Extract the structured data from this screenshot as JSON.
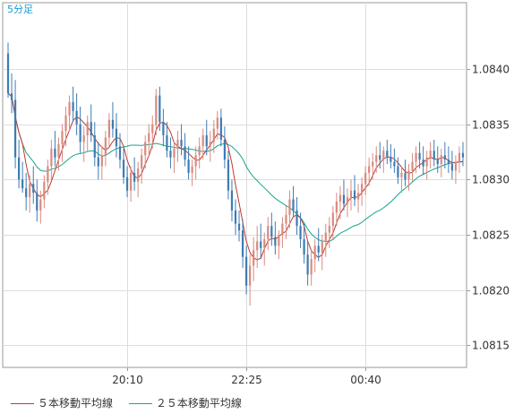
{
  "timeframe_label": "5分足",
  "legend": {
    "ma5": "５本移動平均線",
    "ma25": "２５本移動平均線"
  },
  "colors": {
    "bull": "#d98b80",
    "bear": "#3e7cb3",
    "ma5": "#c0392b",
    "ma25": "#1aa38c",
    "grid": "#dddddd",
    "frame": "#999999"
  },
  "chart_data": {
    "type": "candlestick",
    "instrument_timeframe": "5分足",
    "ylim": [
      1.0813,
      1.0846
    ],
    "ytick_labels": [
      "1.0840",
      "1.0835",
      "1.0830",
      "1.0825",
      "1.0820",
      "1.0815"
    ],
    "ytick_values": [
      1.084,
      1.0835,
      1.083,
      1.0825,
      1.082,
      1.0815
    ],
    "xtick_labels": [
      "20:10",
      "22:25",
      "00:40"
    ],
    "xtick_bar_index": [
      33,
      66,
      99
    ],
    "bar_count": 127,
    "series": [
      {
        "name": "５本移動平均線",
        "color": "#c0392b"
      },
      {
        "name": "２５本移動平均線",
        "color": "#1aa38c"
      }
    ],
    "candles": [
      [
        1.08414,
        1.08424,
        1.08374,
        1.08378
      ],
      [
        1.08378,
        1.08396,
        1.0836,
        1.08372
      ],
      [
        1.08372,
        1.0839,
        1.0831,
        1.0832
      ],
      [
        1.0832,
        1.08336,
        1.08292,
        1.083
      ],
      [
        1.083,
        1.08316,
        1.08288,
        1.08292
      ],
      [
        1.08292,
        1.08306,
        1.08272,
        1.08284
      ],
      [
        1.08284,
        1.08304,
        1.0827,
        1.08296
      ],
      [
        1.08296,
        1.08312,
        1.08278,
        1.08288
      ],
      [
        1.08288,
        1.083,
        1.08262,
        1.08272
      ],
      [
        1.08272,
        1.0829,
        1.0826,
        1.08282
      ],
      [
        1.08282,
        1.08304,
        1.08274,
        1.08298
      ],
      [
        1.08298,
        1.08318,
        1.08286,
        1.08312
      ],
      [
        1.08312,
        1.08336,
        1.083,
        1.08328
      ],
      [
        1.08328,
        1.08344,
        1.08312,
        1.0832
      ],
      [
        1.0832,
        1.08338,
        1.08308,
        1.08332
      ],
      [
        1.08332,
        1.0835,
        1.08316,
        1.08344
      ],
      [
        1.08344,
        1.08366,
        1.0833,
        1.08358
      ],
      [
        1.08358,
        1.08376,
        1.08344,
        1.0837
      ],
      [
        1.0837,
        1.08384,
        1.08352,
        1.08362
      ],
      [
        1.08362,
        1.08378,
        1.0834,
        1.0835
      ],
      [
        1.0835,
        1.08366,
        1.08324,
        1.08334
      ],
      [
        1.08334,
        1.08348,
        1.08316,
        1.0834
      ],
      [
        1.0834,
        1.08358,
        1.08326,
        1.08352
      ],
      [
        1.08352,
        1.08368,
        1.08334,
        1.0834
      ],
      [
        1.0834,
        1.08352,
        1.08312,
        1.0832
      ],
      [
        1.0832,
        1.08334,
        1.083,
        1.08312
      ],
      [
        1.08312,
        1.0833,
        1.083,
        1.08322
      ],
      [
        1.08322,
        1.08344,
        1.08312,
        1.08338
      ],
      [
        1.08338,
        1.0836,
        1.0833,
        1.08354
      ],
      [
        1.08354,
        1.0837,
        1.08338,
        1.08346
      ],
      [
        1.08346,
        1.0836,
        1.0832,
        1.0833
      ],
      [
        1.0833,
        1.08342,
        1.0831,
        1.08318
      ],
      [
        1.08318,
        1.08328,
        1.08296,
        1.08302
      ],
      [
        1.08302,
        1.08312,
        1.08284,
        1.0829
      ],
      [
        1.0829,
        1.08312,
        1.0828,
        1.08306
      ],
      [
        1.08306,
        1.0832,
        1.0829,
        1.08298
      ],
      [
        1.08298,
        1.08316,
        1.08284,
        1.0831
      ],
      [
        1.0831,
        1.08328,
        1.08296,
        1.08322
      ],
      [
        1.08322,
        1.0834,
        1.0831,
        1.08334
      ],
      [
        1.08334,
        1.0835,
        1.0832,
        1.08342
      ],
      [
        1.08342,
        1.08358,
        1.08328,
        1.0835
      ],
      [
        1.0835,
        1.08382,
        1.0834,
        1.08376
      ],
      [
        1.08376,
        1.08384,
        1.08344,
        1.08352
      ],
      [
        1.08352,
        1.08364,
        1.0833,
        1.0834
      ],
      [
        1.0834,
        1.08352,
        1.0832,
        1.08326
      ],
      [
        1.08326,
        1.08338,
        1.0831,
        1.0832
      ],
      [
        1.0832,
        1.08334,
        1.08306,
        1.08328
      ],
      [
        1.08328,
        1.08344,
        1.08316,
        1.08336
      ],
      [
        1.08336,
        1.0835,
        1.08322,
        1.0833
      ],
      [
        1.0833,
        1.08342,
        1.08312,
        1.08318
      ],
      [
        1.08318,
        1.0833,
        1.083,
        1.08306
      ],
      [
        1.08306,
        1.08318,
        1.08294,
        1.08312
      ],
      [
        1.08312,
        1.0833,
        1.083,
        1.08322
      ],
      [
        1.08322,
        1.08338,
        1.0831,
        1.0833
      ],
      [
        1.0833,
        1.08346,
        1.08318,
        1.0834
      ],
      [
        1.0834,
        1.08354,
        1.08322,
        1.0833
      ],
      [
        1.0833,
        1.08344,
        1.08316,
        1.08334
      ],
      [
        1.08334,
        1.08354,
        1.08324,
        1.08346
      ],
      [
        1.08346,
        1.08362,
        1.08336,
        1.08356
      ],
      [
        1.08356,
        1.08364,
        1.0833,
        1.08336
      ],
      [
        1.08336,
        1.08348,
        1.0831,
        1.08318
      ],
      [
        1.08318,
        1.08326,
        1.08282,
        1.0829
      ],
      [
        1.0829,
        1.083,
        1.08262,
        1.08272
      ],
      [
        1.08272,
        1.08282,
        1.0825,
        1.0826
      ],
      [
        1.0826,
        1.08272,
        1.08244,
        1.08254
      ],
      [
        1.08254,
        1.08264,
        1.0822,
        1.0823
      ],
      [
        1.0823,
        1.0824,
        1.08196,
        1.08204
      ],
      [
        1.08204,
        1.08232,
        1.08186,
        1.08222
      ],
      [
        1.08222,
        1.08248,
        1.08208,
        1.08236
      ],
      [
        1.08236,
        1.08258,
        1.0822,
        1.08244
      ],
      [
        1.08244,
        1.0826,
        1.08228,
        1.08238
      ],
      [
        1.08238,
        1.08252,
        1.08222,
        1.08246
      ],
      [
        1.08246,
        1.08266,
        1.08236,
        1.08258
      ],
      [
        1.08258,
        1.0827,
        1.0824,
        1.08248
      ],
      [
        1.08248,
        1.08262,
        1.08232,
        1.0824
      ],
      [
        1.0824,
        1.08254,
        1.08228,
        1.0825
      ],
      [
        1.0825,
        1.08266,
        1.08238,
        1.0826
      ],
      [
        1.0826,
        1.08276,
        1.08246,
        1.08268
      ],
      [
        1.08268,
        1.0829,
        1.08256,
        1.08282
      ],
      [
        1.08282,
        1.08294,
        1.08266,
        1.08272
      ],
      [
        1.08272,
        1.08284,
        1.0825,
        1.08258
      ],
      [
        1.08258,
        1.0827,
        1.08238,
        1.08246
      ],
      [
        1.08246,
        1.0826,
        1.08224,
        1.08232
      ],
      [
        1.08232,
        1.08244,
        1.08204,
        1.08214
      ],
      [
        1.08214,
        1.08236,
        1.08204,
        1.08228
      ],
      [
        1.08228,
        1.08246,
        1.08216,
        1.0824
      ],
      [
        1.0824,
        1.08256,
        1.08226,
        1.08234
      ],
      [
        1.08234,
        1.0825,
        1.08218,
        1.08244
      ],
      [
        1.08244,
        1.0826,
        1.0823,
        1.08252
      ],
      [
        1.08252,
        1.08266,
        1.08238,
        1.08258
      ],
      [
        1.08258,
        1.08276,
        1.08246,
        1.0827
      ],
      [
        1.0827,
        1.08288,
        1.08258,
        1.0828
      ],
      [
        1.0828,
        1.08294,
        1.08264,
        1.08286
      ],
      [
        1.08286,
        1.083,
        1.08272,
        1.08278
      ],
      [
        1.08278,
        1.08292,
        1.08266,
        1.08284
      ],
      [
        1.08284,
        1.083,
        1.08272,
        1.0829
      ],
      [
        1.0829,
        1.08304,
        1.08276,
        1.08282
      ],
      [
        1.08282,
        1.08296,
        1.0827,
        1.08288
      ],
      [
        1.08288,
        1.08302,
        1.08276,
        1.08296
      ],
      [
        1.08296,
        1.08312,
        1.08286,
        1.08306
      ],
      [
        1.08306,
        1.0832,
        1.08294,
        1.08312
      ],
      [
        1.08312,
        1.08324,
        1.083,
        1.08316
      ],
      [
        1.08316,
        1.0833,
        1.08306,
        1.08322
      ],
      [
        1.08322,
        1.08334,
        1.0831,
        1.08318
      ],
      [
        1.08318,
        1.0833,
        1.08306,
        1.08326
      ],
      [
        1.08326,
        1.08336,
        1.08314,
        1.0832
      ],
      [
        1.0832,
        1.08332,
        1.0831,
        1.08316
      ],
      [
        1.08316,
        1.08328,
        1.08306,
        1.08312
      ],
      [
        1.08312,
        1.0832,
        1.08296,
        1.08302
      ],
      [
        1.08302,
        1.08312,
        1.08288,
        1.08306
      ],
      [
        1.08306,
        1.08318,
        1.08294,
        1.083
      ],
      [
        1.083,
        1.08314,
        1.0829,
        1.08308
      ],
      [
        1.08308,
        1.08324,
        1.08298,
        1.08316
      ],
      [
        1.08316,
        1.0833,
        1.08306,
        1.08324
      ],
      [
        1.08324,
        1.08334,
        1.0831,
        1.08318
      ],
      [
        1.08318,
        1.0833,
        1.08304,
        1.08312
      ],
      [
        1.08312,
        1.08326,
        1.083,
        1.0832
      ],
      [
        1.0832,
        1.08334,
        1.0831,
        1.08326
      ],
      [
        1.08326,
        1.08336,
        1.08312,
        1.08318
      ],
      [
        1.08318,
        1.0833,
        1.08306,
        1.08314
      ],
      [
        1.08314,
        1.08328,
        1.08302,
        1.08322
      ],
      [
        1.08322,
        1.08334,
        1.0831,
        1.08318
      ],
      [
        1.08318,
        1.0833,
        1.08306,
        1.08314
      ],
      [
        1.08314,
        1.08326,
        1.083,
        1.08308
      ],
      [
        1.08308,
        1.08322,
        1.08296,
        1.08316
      ],
      [
        1.08316,
        1.0833,
        1.08306,
        1.08324
      ],
      [
        1.08324,
        1.08334,
        1.08312,
        1.0832
      ]
    ]
  }
}
